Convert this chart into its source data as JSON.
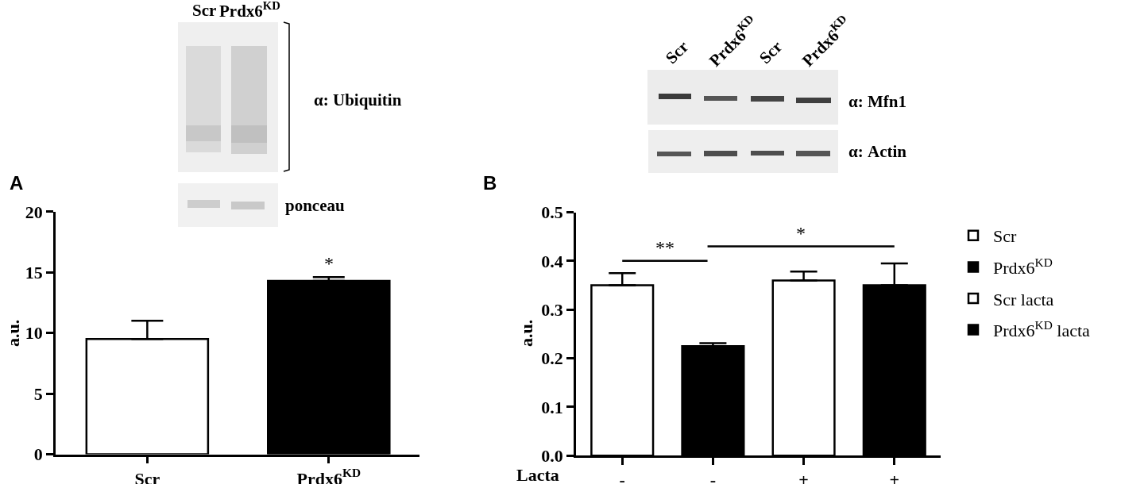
{
  "chart_data": [
    {
      "type": "bar",
      "title": "A",
      "categories": [
        "Scr",
        "Prdx6$^{KD}$"
      ],
      "values": [
        9.5,
        14.3
      ],
      "colors": [
        "#ffffff",
        "#000000"
      ],
      "errors": [
        [
          9.5,
          11.0
        ],
        [
          14.3,
          14.6
        ]
      ],
      "ylabel": "a.u.",
      "ylim": [
        0,
        20
      ],
      "yticks": [
        0,
        5,
        10,
        15,
        20
      ],
      "annotations": [
        "*",
        "Scr",
        "Prdx6$^{KD}$",
        "α: Ubiquitin",
        "ponceau"
      ]
    },
    {
      "type": "bar",
      "title": "B",
      "categories": [
        "-",
        "-",
        "+",
        "+"
      ],
      "xlabel": "Lacta",
      "ylabel": "a.u.",
      "ylim": [
        0,
        0.5
      ],
      "yticks": [
        {
          "value": 0,
          "label": "0.0"
        },
        0.1,
        0.2,
        0.3,
        0.4,
        0.5
      ],
      "legend": "right",
      "series": [
        {
          "name": "Scr",
          "color": "#ffffff",
          "values": [
            0.35,
            null,
            null,
            null
          ],
          "errors": [
            [
              0.35,
              0.375
            ],
            null,
            null,
            null
          ]
        },
        {
          "name": "Prdx6$^{KD}$",
          "color": "#000000",
          "values": [
            null,
            0.225,
            null,
            null
          ],
          "errors": [
            null,
            [
              0.225,
              0.231
            ],
            null,
            null
          ]
        },
        {
          "name": "Scr lacta",
          "color": "#ffffff",
          "values": [
            null,
            null,
            0.36,
            null
          ],
          "errors": [
            null,
            null,
            [
              0.36,
              0.378
            ],
            null
          ]
        },
        {
          "name": "Prdx6$^{KD}$ lacta",
          "color": "#000000",
          "values": [
            null,
            null,
            null,
            0.35
          ],
          "errors": [
            null,
            null,
            null,
            [
              0.35,
              0.395
            ]
          ]
        }
      ],
      "annotations": [
        "**",
        "*",
        "Scr",
        "Prdx6$^{KD}$",
        "Scr",
        "Prdx6$^{KD}$",
        "α: Mfn1",
        "α: Actin"
      ]
    }
  ]
}
